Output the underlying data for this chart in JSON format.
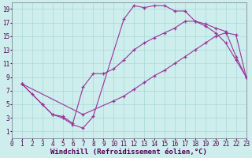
{
  "bg_color": "#cdeeed",
  "line_color": "#993399",
  "grid_color": "#aad8d8",
  "xlabel": "Windchill (Refroidissement éolien,°C)",
  "xlabel_fontsize": 6.5,
  "tick_fontsize": 5.5,
  "xlim": [
    0,
    23
  ],
  "ylim": [
    0,
    20
  ],
  "xticks": [
    0,
    1,
    2,
    3,
    4,
    5,
    6,
    7,
    8,
    9,
    10,
    11,
    12,
    13,
    14,
    15,
    16,
    17,
    18,
    19,
    20,
    21,
    22,
    23
  ],
  "yticks": [
    1,
    3,
    5,
    7,
    9,
    11,
    13,
    15,
    17,
    19
  ],
  "line1_x": [
    1,
    2,
    3,
    4,
    5,
    6,
    7,
    8,
    11,
    12,
    13,
    14,
    15,
    16,
    17,
    18,
    19,
    20,
    21,
    22,
    23
  ],
  "line1_y": [
    8.0,
    6.5,
    5.0,
    3.5,
    3.0,
    2.0,
    1.5,
    3.2,
    17.5,
    19.5,
    19.2,
    19.5,
    19.5,
    18.7,
    18.7,
    17.2,
    16.5,
    15.5,
    14.0,
    11.5,
    9.0
  ],
  "line2_x": [
    1,
    3,
    4,
    5,
    6,
    7,
    8,
    9,
    10,
    11,
    12,
    13,
    14,
    15,
    16,
    17,
    18,
    19,
    20,
    21,
    22,
    23
  ],
  "line2_y": [
    8.0,
    5.0,
    3.5,
    3.2,
    2.2,
    7.5,
    9.5,
    9.5,
    10.2,
    11.5,
    13.0,
    14.0,
    14.8,
    15.5,
    16.2,
    17.2,
    17.2,
    16.8,
    16.2,
    15.7,
    12.0,
    9.0
  ],
  "line3_x": [
    1,
    7,
    10,
    11,
    12,
    13,
    14,
    15,
    16,
    17,
    18,
    19,
    20,
    21,
    22,
    23
  ],
  "line3_y": [
    8.0,
    3.5,
    5.5,
    6.2,
    7.2,
    8.2,
    9.2,
    10.0,
    11.0,
    12.0,
    13.0,
    14.0,
    15.0,
    15.5,
    15.2,
    9.0
  ]
}
